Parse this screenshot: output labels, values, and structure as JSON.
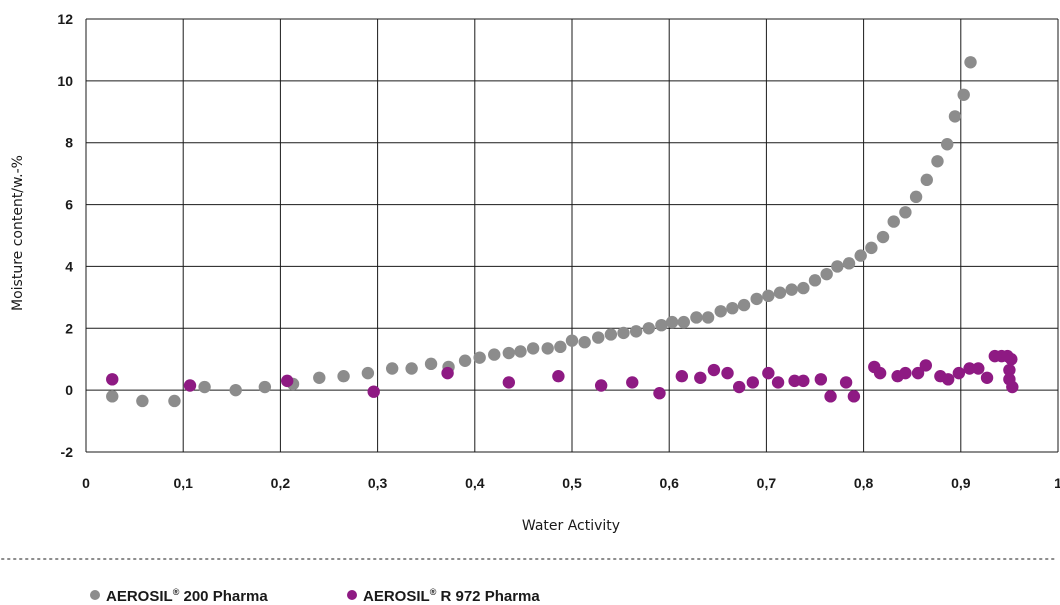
{
  "chart_data": {
    "type": "scatter",
    "xlabel": "Water Activity",
    "ylabel": "Moisture content/w.-%",
    "xlim": [
      0,
      1
    ],
    "ylim": [
      -2,
      12
    ],
    "x_ticks": [
      0,
      0.1,
      0.2,
      0.3,
      0.4,
      0.5,
      0.6,
      0.7,
      0.8,
      0.9,
      1
    ],
    "x_tick_labels": [
      "0",
      "0,1",
      "0,2",
      "0,3",
      "0,4",
      "0,5",
      "0,6",
      "0,7",
      "0,8",
      "0,9",
      "1"
    ],
    "y_ticks": [
      -2,
      0,
      2,
      4,
      6,
      8,
      10,
      12
    ],
    "y_tick_labels": [
      "-2",
      "0",
      "2",
      "4",
      "6",
      "8",
      "10",
      "12"
    ],
    "grid": true,
    "legend_position": "bottom-left",
    "series": [
      {
        "name": "AEROSIL® 200 Pharma",
        "legend_label": {
          "brand": "AEROSIL",
          "mark": "®",
          "product": "200 Pharma"
        },
        "color": "#8c8c8c",
        "points": [
          [
            0.027,
            -0.2
          ],
          [
            0.058,
            -0.35
          ],
          [
            0.091,
            -0.35
          ],
          [
            0.122,
            0.1
          ],
          [
            0.154,
            0.0
          ],
          [
            0.184,
            0.1
          ],
          [
            0.213,
            0.2
          ],
          [
            0.24,
            0.4
          ],
          [
            0.265,
            0.45
          ],
          [
            0.29,
            0.55
          ],
          [
            0.315,
            0.7
          ],
          [
            0.335,
            0.7
          ],
          [
            0.355,
            0.85
          ],
          [
            0.373,
            0.75
          ],
          [
            0.39,
            0.95
          ],
          [
            0.405,
            1.05
          ],
          [
            0.42,
            1.15
          ],
          [
            0.435,
            1.2
          ],
          [
            0.447,
            1.25
          ],
          [
            0.46,
            1.35
          ],
          [
            0.475,
            1.35
          ],
          [
            0.488,
            1.4
          ],
          [
            0.5,
            1.6
          ],
          [
            0.513,
            1.55
          ],
          [
            0.527,
            1.7
          ],
          [
            0.54,
            1.8
          ],
          [
            0.553,
            1.85
          ],
          [
            0.566,
            1.9
          ],
          [
            0.579,
            2.0
          ],
          [
            0.592,
            2.1
          ],
          [
            0.603,
            2.2
          ],
          [
            0.615,
            2.2
          ],
          [
            0.628,
            2.35
          ],
          [
            0.64,
            2.35
          ],
          [
            0.653,
            2.55
          ],
          [
            0.665,
            2.65
          ],
          [
            0.677,
            2.75
          ],
          [
            0.69,
            2.95
          ],
          [
            0.702,
            3.05
          ],
          [
            0.714,
            3.15
          ],
          [
            0.726,
            3.25
          ],
          [
            0.738,
            3.3
          ],
          [
            0.75,
            3.55
          ],
          [
            0.762,
            3.75
          ],
          [
            0.773,
            4.0
          ],
          [
            0.785,
            4.1
          ],
          [
            0.797,
            4.35
          ],
          [
            0.808,
            4.6
          ],
          [
            0.82,
            4.95
          ],
          [
            0.831,
            5.45
          ],
          [
            0.843,
            5.75
          ],
          [
            0.854,
            6.25
          ],
          [
            0.865,
            6.8
          ],
          [
            0.876,
            7.4
          ],
          [
            0.886,
            7.95
          ],
          [
            0.894,
            8.85
          ],
          [
            0.903,
            9.55
          ],
          [
            0.91,
            10.6
          ]
        ]
      },
      {
        "name": "AEROSIL® R 972 Pharma",
        "legend_label": {
          "brand": "AEROSIL",
          "mark": "®",
          "product": "R 972 Pharma"
        },
        "color": "#8e1a83",
        "points": [
          [
            0.027,
            0.35
          ],
          [
            0.107,
            0.15
          ],
          [
            0.207,
            0.3
          ],
          [
            0.296,
            -0.05
          ],
          [
            0.372,
            0.55
          ],
          [
            0.435,
            0.25
          ],
          [
            0.486,
            0.45
          ],
          [
            0.53,
            0.15
          ],
          [
            0.562,
            0.25
          ],
          [
            0.59,
            -0.1
          ],
          [
            0.613,
            0.45
          ],
          [
            0.632,
            0.4
          ],
          [
            0.646,
            0.65
          ],
          [
            0.66,
            0.55
          ],
          [
            0.672,
            0.1
          ],
          [
            0.686,
            0.25
          ],
          [
            0.702,
            0.55
          ],
          [
            0.712,
            0.25
          ],
          [
            0.729,
            0.3
          ],
          [
            0.738,
            0.3
          ],
          [
            0.756,
            0.35
          ],
          [
            0.766,
            -0.2
          ],
          [
            0.782,
            0.25
          ],
          [
            0.79,
            -0.2
          ],
          [
            0.811,
            0.75
          ],
          [
            0.817,
            0.55
          ],
          [
            0.835,
            0.45
          ],
          [
            0.843,
            0.55
          ],
          [
            0.856,
            0.55
          ],
          [
            0.864,
            0.8
          ],
          [
            0.879,
            0.45
          ],
          [
            0.887,
            0.35
          ],
          [
            0.898,
            0.55
          ],
          [
            0.909,
            0.7
          ],
          [
            0.918,
            0.7
          ],
          [
            0.927,
            0.4
          ],
          [
            0.935,
            1.1
          ],
          [
            0.942,
            1.1
          ],
          [
            0.948,
            1.1
          ],
          [
            0.952,
            1.0
          ],
          [
            0.95,
            0.65
          ],
          [
            0.95,
            0.35
          ],
          [
            0.953,
            0.1
          ]
        ]
      }
    ]
  }
}
